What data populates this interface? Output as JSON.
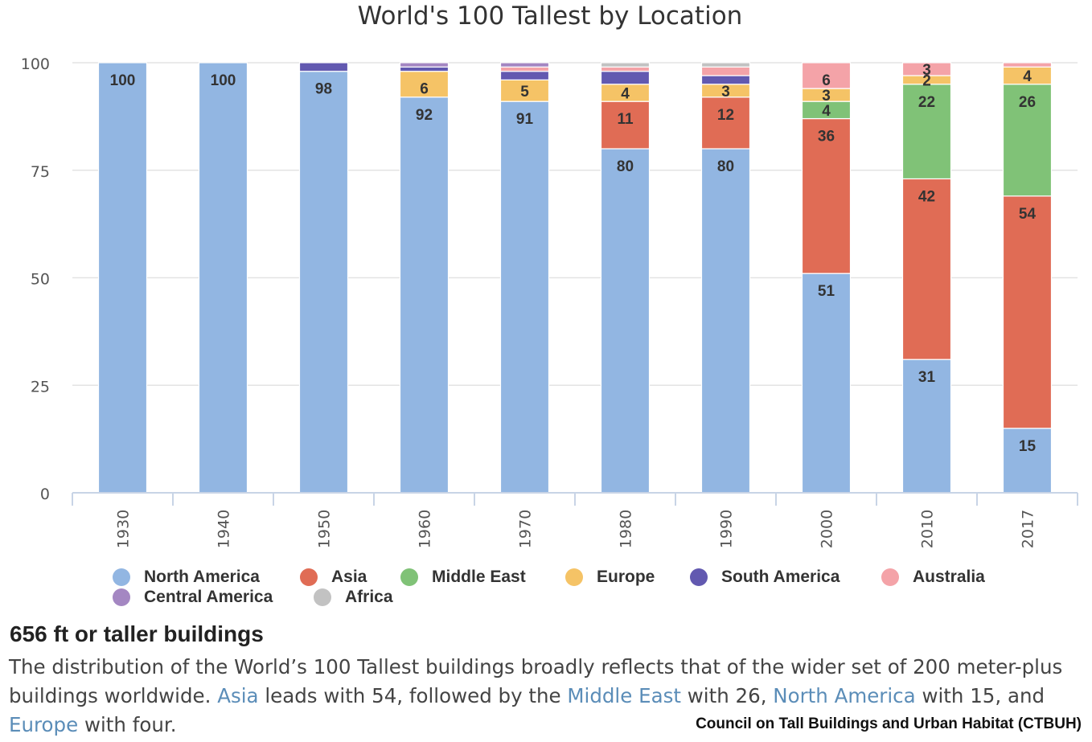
{
  "chart_data": {
    "type": "bar",
    "stacked": true,
    "title": "World's 100 Tallest by Location",
    "xlabel": "",
    "ylabel": "",
    "ylim": [
      0,
      100
    ],
    "yticks": [
      "0",
      "25",
      "50",
      "75",
      "100"
    ],
    "categories": [
      "1930",
      "1940",
      "1950",
      "1960",
      "1970",
      "1980",
      "1990",
      "2000",
      "2010",
      "2017"
    ],
    "series": [
      {
        "name": "North America",
        "color": "#92b6e2",
        "values": [
          100,
          100,
          98,
          92,
          91,
          80,
          80,
          51,
          31,
          15
        ],
        "labels": [
          "100",
          "100",
          "98",
          "92",
          "91",
          "80",
          "80",
          "51",
          "31",
          "15"
        ]
      },
      {
        "name": "Asia",
        "color": "#e06c55",
        "values": [
          0,
          0,
          0,
          0,
          0,
          11,
          12,
          36,
          42,
          54
        ],
        "labels": [
          "",
          "",
          "",
          "",
          "",
          "11",
          "12",
          "36",
          "42",
          "54"
        ]
      },
      {
        "name": "Middle East",
        "color": "#80c277",
        "values": [
          0,
          0,
          0,
          0,
          0,
          0,
          0,
          4,
          22,
          26
        ],
        "labels": [
          "",
          "",
          "",
          "",
          "",
          "",
          "",
          "4",
          "22",
          "26"
        ]
      },
      {
        "name": "Europe",
        "color": "#f5c366",
        "values": [
          0,
          0,
          0,
          6,
          5,
          4,
          3,
          3,
          2,
          4
        ],
        "labels": [
          "",
          "",
          "",
          "6",
          "5",
          "4",
          "3",
          "3",
          "2",
          "4"
        ]
      },
      {
        "name": "South America",
        "color": "#6259b0",
        "values": [
          0,
          0,
          2,
          1,
          2,
          3,
          2,
          0,
          0,
          0
        ],
        "labels": [
          "",
          "",
          "",
          "",
          "",
          "",
          "",
          "",
          "",
          ""
        ]
      },
      {
        "name": "Australia",
        "color": "#f4a3a8",
        "values": [
          0,
          0,
          0,
          0,
          1,
          1,
          2,
          6,
          3,
          1
        ],
        "labels": [
          "",
          "",
          "",
          "",
          "",
          "",
          "",
          "6",
          "3",
          ""
        ]
      },
      {
        "name": "Central America",
        "color": "#a487c2",
        "values": [
          0,
          0,
          0,
          1,
          1,
          0,
          0,
          0,
          0,
          0
        ],
        "labels": [
          "",
          "",
          "",
          "",
          "",
          "",
          "",
          "",
          "",
          ""
        ]
      },
      {
        "name": "Africa",
        "color": "#c2c2c2",
        "values": [
          0,
          0,
          0,
          0,
          0,
          1,
          1,
          0,
          0,
          0
        ],
        "labels": [
          "",
          "",
          "",
          "",
          "",
          "",
          "",
          "",
          "",
          ""
        ]
      }
    ],
    "legend": [
      "North America",
      "Asia",
      "Middle East",
      "Europe",
      "South America",
      "Australia",
      "Central America",
      "Africa"
    ]
  },
  "subtitle": "656 ft or taller buildings",
  "caption": {
    "t1": "The distribution of the World’s 100 Tallest buildings broadly reflects that of the wider set of 200 meter-plus buildings worldwide. ",
    "l1": "Asia",
    "t2": " leads with 54, followed by the ",
    "l2": "Middle East",
    "t3": " with 26, ",
    "l3": "North America",
    "t4": " with 15, and ",
    "l4": "Europe",
    "t5": " with four."
  },
  "source": "Council on Tall Buildings and Urban Habitat (CTBUH)"
}
